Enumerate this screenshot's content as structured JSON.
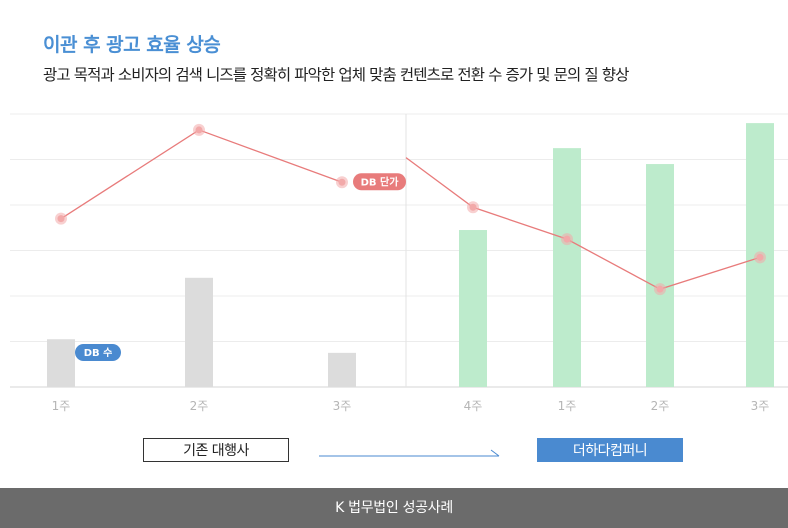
{
  "header": {
    "title": "이관 후 광고 효율 상승",
    "subtitle": "광고 목적과 소비자의 검색 니즈를 정확히 파악한 업체 맞춤 컨텐츠로 전환 수 증가 및 문의 질 향상"
  },
  "chart_data": {
    "type": "bar",
    "grid": true,
    "ylim": [
      0,
      6
    ],
    "categories": [
      "1주",
      "2주",
      "3주",
      "4주",
      "1주",
      "2주",
      "3주"
    ],
    "series": [
      {
        "name": "DB 수",
        "kind": "bar",
        "values": [
          1.05,
          2.4,
          0.75,
          3.45,
          5.25,
          4.9,
          5.8
        ],
        "colors": [
          "#dcdcdc",
          "#dcdcdc",
          "#dcdcdc",
          "#bdebcc",
          "#bdebcc",
          "#bdebcc",
          "#bdebcc"
        ]
      },
      {
        "name": "DB 단가",
        "kind": "line",
        "color": "#e87b7b",
        "values": [
          3.7,
          5.65,
          4.5,
          3.95,
          3.25,
          2.15,
          2.85
        ]
      }
    ],
    "divider_after_index": 2,
    "series_labels": [
      {
        "text": "DB 수",
        "series": 0,
        "index": 0,
        "color": "#4a8ad0"
      },
      {
        "text": "DB 단가",
        "series": 1,
        "index": 2,
        "color": "#e87b7b"
      }
    ]
  },
  "legend": {
    "before_label": "기존 대행사",
    "after_label": "더하다컴퍼니"
  },
  "footer": {
    "text": "K 법무법인 성공사례"
  },
  "colors": {
    "title": "#4a8fd4",
    "bar_before": "#dcdcdc",
    "bar_after": "#bdebcc",
    "line": "#e87b7b",
    "point": "#f2a9a9",
    "accent": "#4a8ad0",
    "footer_bg": "#6b6b6b"
  }
}
